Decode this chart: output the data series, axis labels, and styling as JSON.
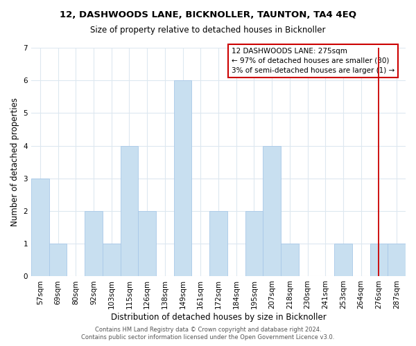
{
  "title": "12, DASHWOODS LANE, BICKNOLLER, TAUNTON, TA4 4EQ",
  "subtitle": "Size of property relative to detached houses in Bicknoller",
  "xlabel": "Distribution of detached houses by size in Bicknoller",
  "ylabel": "Number of detached properties",
  "bar_labels": [
    "57sqm",
    "69sqm",
    "80sqm",
    "92sqm",
    "103sqm",
    "115sqm",
    "126sqm",
    "138sqm",
    "149sqm",
    "161sqm",
    "172sqm",
    "184sqm",
    "195sqm",
    "207sqm",
    "218sqm",
    "230sqm",
    "241sqm",
    "253sqm",
    "264sqm",
    "276sqm",
    "287sqm"
  ],
  "bar_values": [
    3,
    1,
    0,
    2,
    1,
    4,
    2,
    0,
    6,
    0,
    2,
    0,
    2,
    4,
    1,
    0,
    0,
    1,
    0,
    1,
    1
  ],
  "bar_color": "#c8dff0",
  "bar_edge_color": "#a8c8e8",
  "highlight_index": 19,
  "highlight_line_color": "#cc0000",
  "ylim": [
    0,
    7
  ],
  "yticks": [
    0,
    1,
    2,
    3,
    4,
    5,
    6,
    7
  ],
  "annotation_title": "12 DASHWOODS LANE: 275sqm",
  "annotation_line1": "← 97% of detached houses are smaller (30)",
  "annotation_line2": "3% of semi-detached houses are larger (1) →",
  "annotation_box_color": "#ffffff",
  "annotation_box_edge": "#cc0000",
  "footer_line1": "Contains HM Land Registry data © Crown copyright and database right 2024.",
  "footer_line2": "Contains public sector information licensed under the Open Government Licence v3.0.",
  "background_color": "#ffffff",
  "grid_color": "#dde8f0",
  "title_fontsize": 9.5,
  "subtitle_fontsize": 8.5,
  "axis_label_fontsize": 8.5,
  "tick_fontsize": 7.5,
  "footer_fontsize": 6.0,
  "annotation_fontsize": 7.5
}
